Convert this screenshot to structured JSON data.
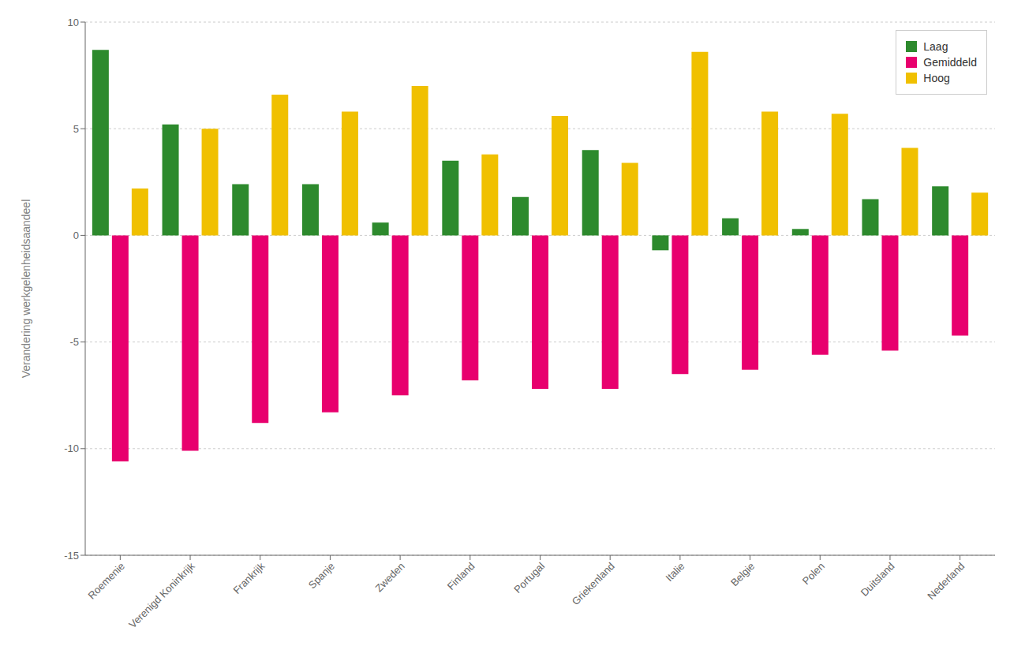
{
  "chart_data": {
    "type": "bar",
    "categories": [
      "Roemenie",
      "Verenigd Koninkrijk",
      "Frankrijk",
      "Spanje",
      "Zweden",
      "Finland",
      "Portugal",
      "Griekenland",
      "Italie",
      "Belgie",
      "Polen",
      "Duitsland",
      "Nederland"
    ],
    "series": [
      {
        "name": "Laag",
        "color": "#2d8a2d",
        "values": [
          8.7,
          5.2,
          2.4,
          2.4,
          0.6,
          3.5,
          1.8,
          4.0,
          -0.7,
          0.8,
          0.3,
          1.7,
          2.3
        ]
      },
      {
        "name": "Gemiddeld",
        "color": "#e8006e",
        "values": [
          -10.6,
          -10.1,
          -8.8,
          -8.3,
          -7.5,
          -6.8,
          -7.2,
          -7.2,
          -6.5,
          -6.3,
          -5.6,
          -5.4,
          -4.7
        ]
      },
      {
        "name": "Hoog",
        "color": "#f0c000",
        "values": [
          2.2,
          5.0,
          6.6,
          5.8,
          7.0,
          3.8,
          5.6,
          3.4,
          8.6,
          5.8,
          5.7,
          4.1,
          2.0
        ]
      }
    ],
    "ylabel": "Verandering werkgelenheidsaandeel",
    "ylim": [
      -15,
      10
    ],
    "yticks": [
      -15,
      -10,
      -5,
      0,
      5,
      10
    ],
    "grid": true,
    "legend": "upper right"
  }
}
